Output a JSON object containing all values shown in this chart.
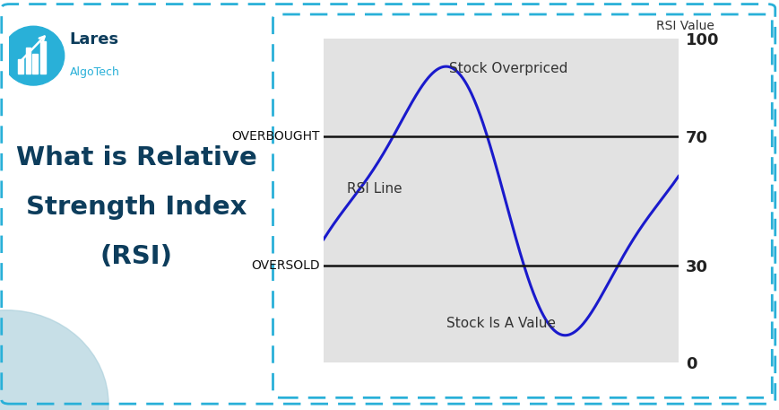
{
  "bg_color": "#ffffff",
  "left_title_line1": "What is Relative",
  "left_title_line2": "Strength Index",
  "left_title_line3": "(RSI)",
  "left_title_color": "#0d3d5c",
  "chart_bg_color": "#e2e2e2",
  "rsi_line_color": "#1a1acc",
  "overbought_level": 70,
  "oversold_level": 30,
  "ymin": 0,
  "ymax": 100,
  "hline_color": "#111111",
  "overbought_label": "OVERBOUGHT",
  "oversold_label": "OVERSOLD",
  "rsi_line_label": "RSI Line",
  "rsi_value_label": "RSI Value",
  "overpriced_label": "Stock Overpriced",
  "value_label": "Stock Is A Value",
  "ytick_labels": [
    "100",
    "70",
    "30",
    "0"
  ],
  "ytick_values": [
    100,
    70,
    30,
    0
  ],
  "dashed_border_color": "#29b0d8",
  "logo_circle_color": "#29b0d8",
  "logo_text_lares": "Lares",
  "logo_text_algo": "AlgoTech",
  "logo_text_color": "#0d3d5c",
  "bottom_circle_color": "#aacfdb",
  "label_fontsize": 10,
  "axis_fontsize": 11,
  "title_fontsize": 21
}
